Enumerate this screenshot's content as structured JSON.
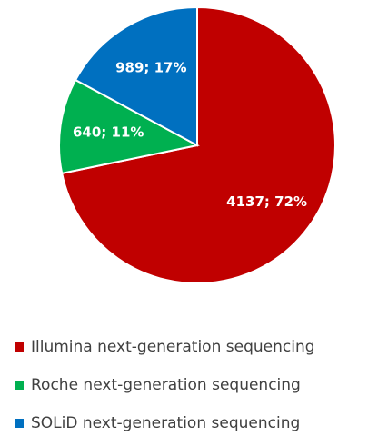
{
  "chart_data": {
    "type": "pie",
    "categories": [
      "Illumina next-generation sequencing",
      "Roche next-generation sequencing",
      "SOLiD next-generation sequencing"
    ],
    "values": [
      4137,
      640,
      989
    ],
    "value_labels": [
      "4137; 72%",
      "640; 11%",
      "989; 17%"
    ],
    "colors": [
      "#c00000",
      "#00b050",
      "#0070c0"
    ],
    "legend": "bottom"
  }
}
